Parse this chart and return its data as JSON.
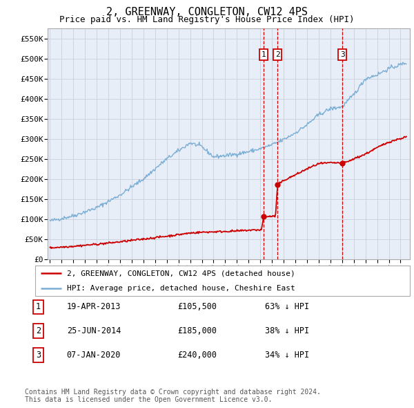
{
  "title": "2, GREENWAY, CONGLETON, CW12 4PS",
  "subtitle": "Price paid vs. HM Land Registry's House Price Index (HPI)",
  "title_fontsize": 11,
  "subtitle_fontsize": 9,
  "ylabel_ticks": [
    "£0",
    "£50K",
    "£100K",
    "£150K",
    "£200K",
    "£250K",
    "£300K",
    "£350K",
    "£400K",
    "£450K",
    "£500K",
    "£550K"
  ],
  "ytick_vals": [
    0,
    50000,
    100000,
    150000,
    200000,
    250000,
    300000,
    350000,
    400000,
    450000,
    500000,
    550000
  ],
  "ylim": [
    0,
    575000
  ],
  "xlim_start": 1994.8,
  "xlim_end": 2025.8,
  "transactions": [
    {
      "num": 1,
      "date": "19-APR-2013",
      "price": 105500,
      "pct": "63% ↓ HPI",
      "x_year": 2013.29
    },
    {
      "num": 2,
      "date": "25-JUN-2014",
      "price": 185000,
      "pct": "38% ↓ HPI",
      "x_year": 2014.48
    },
    {
      "num": 3,
      "date": "07-JAN-2020",
      "price": 240000,
      "pct": "34% ↓ HPI",
      "x_year": 2020.02
    }
  ],
  "legend_line1": "2, GREENWAY, CONGLETON, CW12 4PS (detached house)",
  "legend_line2": "HPI: Average price, detached house, Cheshire East",
  "footer1": "Contains HM Land Registry data © Crown copyright and database right 2024.",
  "footer2": "This data is licensed under the Open Government Licence v3.0.",
  "red_color": "#cc0000",
  "blue_color": "#7aadd4",
  "bg_color": "#e8eef8",
  "plot_bg": "#ffffff",
  "grid_color": "#c8d0dc"
}
